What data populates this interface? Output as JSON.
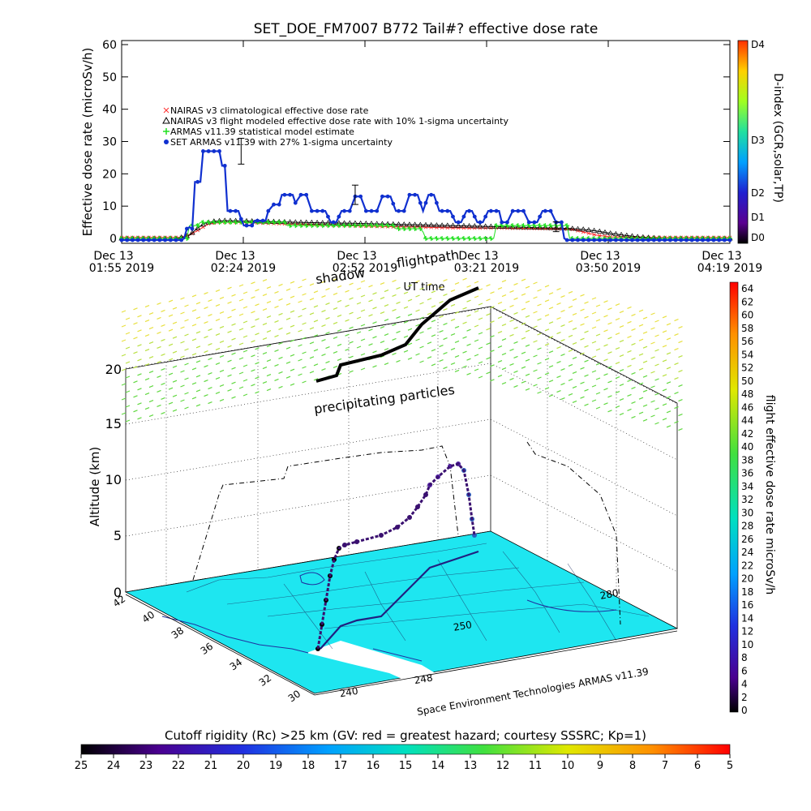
{
  "chart_data": [
    {
      "type": "line",
      "title": "SET_DOE_FM7007  B772 Tail#? effective dose rate",
      "ylabel": "Effective dose rate (microSv/h)",
      "ylim": [
        0,
        60
      ],
      "yticks": [
        "0",
        "10",
        "20",
        "30",
        "40",
        "50",
        "60"
      ],
      "xlabel": "UT time",
      "x_ticks": [
        {
          "date": "Dec 13",
          "time": "01:55 2019"
        },
        {
          "date": "Dec 13",
          "time": "02:24 2019"
        },
        {
          "date": "Dec 13",
          "time": "02:52 2019"
        },
        {
          "date": "Dec 13",
          "time": "03:21 2019"
        },
        {
          "date": "Dec 13",
          "time": "03:50 2019"
        },
        {
          "date": "Dec 13",
          "time": "04:19 2019"
        }
      ],
      "right_axis": {
        "label": "D-index (GCR,solar,TP)",
        "ticks": [
          "D0",
          "D1",
          "D2",
          "D3",
          "D4"
        ]
      },
      "legend_position": "upper-left",
      "series": [
        {
          "name": "NAIRAS v3 climatological effective dose rate",
          "color": "#ff3030",
          "marker": "x",
          "points": [
            [
              0,
              0.3
            ],
            [
              22,
              0.3
            ],
            [
              26,
              1.5
            ],
            [
              28,
              2.5
            ],
            [
              30,
              3.5
            ],
            [
              32,
              4.5
            ],
            [
              36,
              5
            ],
            [
              40,
              5
            ],
            [
              50,
              4.8
            ],
            [
              60,
              4.5
            ],
            [
              70,
              4.2
            ],
            [
              80,
              4
            ],
            [
              90,
              3.8
            ],
            [
              100,
              3.6
            ],
            [
              110,
              3.5
            ],
            [
              120,
              3.3
            ],
            [
              130,
              3.2
            ],
            [
              140,
              3.2
            ],
            [
              150,
              3.1
            ],
            [
              160,
              3
            ],
            [
              166,
              2.8
            ],
            [
              170,
              2
            ],
            [
              175,
              1
            ],
            [
              180,
              0.5
            ],
            [
              190,
              0.3
            ],
            [
              200,
              0.3
            ],
            [
              224,
              0.3
            ]
          ]
        },
        {
          "name": "NAIRAS v3 flight modeled effective dose rate with 10% 1-sigma uncertainty",
          "color": "#000000",
          "marker": "triangle",
          "points": [
            [
              0,
              0
            ],
            [
              20,
              0
            ],
            [
              23,
              0.5
            ],
            [
              25,
              1
            ],
            [
              27,
              2.5
            ],
            [
              29,
              3.8
            ],
            [
              31,
              4.8
            ],
            [
              34,
              5.3
            ],
            [
              38,
              5.5
            ],
            [
              45,
              5.4
            ],
            [
              55,
              5.2
            ],
            [
              65,
              5
            ],
            [
              75,
              4.8
            ],
            [
              85,
              4.7
            ],
            [
              95,
              4.5
            ],
            [
              105,
              4.3
            ],
            [
              115,
              4.1
            ],
            [
              125,
              3.9
            ],
            [
              135,
              3.7
            ],
            [
              145,
              3.5
            ],
            [
              155,
              3.3
            ],
            [
              165,
              3.1
            ],
            [
              170,
              2.8
            ],
            [
              175,
              2.3
            ],
            [
              180,
              1.6
            ],
            [
              185,
              1
            ],
            [
              190,
              0.5
            ],
            [
              195,
              0.2
            ],
            [
              200,
              0
            ],
            [
              224,
              0
            ]
          ]
        },
        {
          "name": "ARMAS v11.39 statistical model estimate",
          "color": "#20e020",
          "marker": "star",
          "points": [
            [
              0,
              0
            ],
            [
              24,
              0
            ],
            [
              25,
              4
            ],
            [
              28,
              4
            ],
            [
              29,
              5
            ],
            [
              60,
              5
            ],
            [
              61,
              4
            ],
            [
              100,
              4
            ],
            [
              101,
              3
            ],
            [
              110,
              3
            ],
            [
              111,
              2
            ],
            [
              112,
              0
            ],
            [
              137,
              0
            ],
            [
              138,
              4
            ],
            [
              164,
              4
            ],
            [
              165,
              0
            ],
            [
              224,
              0
            ]
          ]
        },
        {
          "name": "SET ARMAS v11.39 with 27% 1-sigma uncertainty",
          "color": "#1030d0",
          "marker": "dot",
          "points": [
            [
              0,
              -0.5
            ],
            [
              22,
              -0.5
            ],
            [
              23,
              0
            ],
            [
              24,
              3
            ],
            [
              25,
              3.5
            ],
            [
              26,
              3
            ],
            [
              27,
              17.5
            ],
            [
              29,
              17.5
            ],
            [
              30,
              27
            ],
            [
              32,
              27
            ],
            [
              36,
              27
            ],
            [
              37,
              22.5
            ],
            [
              38,
              22.5
            ],
            [
              39,
              8.5
            ],
            [
              43,
              8.5
            ],
            [
              44,
              6
            ],
            [
              45,
              4
            ],
            [
              48,
              4
            ],
            [
              49,
              5.5
            ],
            [
              53,
              5.5
            ],
            [
              54,
              8.5
            ],
            [
              56,
              10.5
            ],
            [
              58,
              10.5
            ],
            [
              59,
              13.5
            ],
            [
              63,
              13.5
            ],
            [
              64,
              11
            ],
            [
              66,
              13.5
            ],
            [
              68,
              13.5
            ],
            [
              70,
              8.5
            ],
            [
              75,
              8.5
            ],
            [
              77,
              5
            ],
            [
              79,
              5
            ],
            [
              81,
              8.5
            ],
            [
              84,
              8.5
            ],
            [
              86,
              13
            ],
            [
              88,
              13
            ],
            [
              90,
              8.5
            ],
            [
              94,
              8.5
            ],
            [
              96,
              13
            ],
            [
              99,
              13
            ],
            [
              101,
              8.5
            ],
            [
              104,
              8.5
            ],
            [
              106,
              13.5
            ],
            [
              109,
              13.5
            ],
            [
              111,
              8.5
            ],
            [
              113,
              13.5
            ],
            [
              115,
              13.5
            ],
            [
              117,
              8.5
            ],
            [
              121,
              8.5
            ],
            [
              123,
              5
            ],
            [
              125,
              5
            ],
            [
              127,
              8.5
            ],
            [
              129,
              8.5
            ],
            [
              131,
              5
            ],
            [
              133,
              5
            ],
            [
              135,
              8.5
            ],
            [
              139,
              8.5
            ],
            [
              140,
              5
            ],
            [
              142,
              5
            ],
            [
              144,
              8.5
            ],
            [
              148,
              8.5
            ],
            [
              150,
              5
            ],
            [
              153,
              5
            ],
            [
              155,
              8.5
            ],
            [
              158,
              8.5
            ],
            [
              160,
              5
            ],
            [
              162,
              5
            ],
            [
              163,
              0
            ],
            [
              164,
              -0.5
            ],
            [
              224,
              -0.5
            ]
          ]
        }
      ]
    },
    {
      "type": "scatter",
      "annotations": [
        "shadow",
        "flightpath",
        "precipitating particles"
      ],
      "zlabel": "Altitude (km)",
      "zticks": [
        "0",
        "5",
        "10",
        "15",
        "20"
      ],
      "lat_ticks": [
        "42",
        "40",
        "38",
        "36",
        "34",
        "32",
        "30"
      ],
      "lon_ticks": [
        "240",
        "248",
        "250",
        "280"
      ],
      "credit": "Space Environment Technologies ARMAS v11.39",
      "colorbar": {
        "label": "flight effective dose rate microSv/h",
        "ticks": [
          "0",
          "2",
          "4",
          "6",
          "8",
          "10",
          "12",
          "14",
          "16",
          "18",
          "20",
          "22",
          "24",
          "26",
          "28",
          "30",
          "32",
          "34",
          "36",
          "38",
          "40",
          "42",
          "44",
          "46",
          "48",
          "50",
          "52",
          "54",
          "56",
          "58",
          "60",
          "62",
          "64"
        ],
        "range": [
          0,
          64
        ]
      }
    },
    {
      "type": "heatmap",
      "title": "Cutoff rigidity (Rc) >25 km (GV: red = greatest hazard; courtesy SSSRC; Kp=1)",
      "scale_labels": [
        "25",
        "24",
        "23",
        "22",
        "21",
        "20",
        "19",
        "18",
        "17",
        "16",
        "15",
        "14",
        "13",
        "12",
        "11",
        "10",
        "9",
        "8",
        "7",
        "6",
        "5"
      ],
      "range": [
        25,
        5
      ]
    }
  ]
}
